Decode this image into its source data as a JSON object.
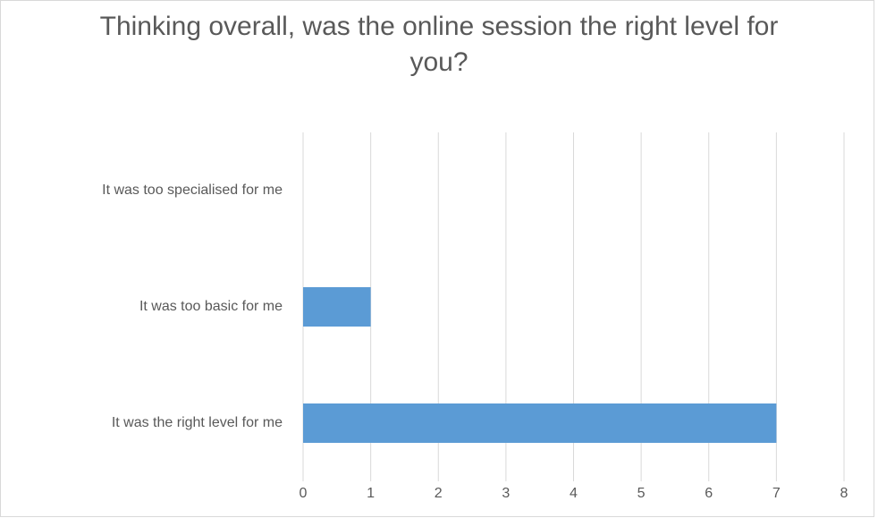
{
  "chart_data": {
    "type": "bar",
    "orientation": "horizontal",
    "title": "Thinking overall, was the online session the right level for you?",
    "categories": [
      "It was too specialised for me",
      "It was too basic for me",
      "It was the right level for me"
    ],
    "values": [
      0,
      1,
      7
    ],
    "color": "#5b9bd5",
    "xlim": [
      0,
      8
    ],
    "xticks": [
      0,
      1,
      2,
      3,
      4,
      5,
      6,
      7,
      8
    ],
    "grid": true
  }
}
